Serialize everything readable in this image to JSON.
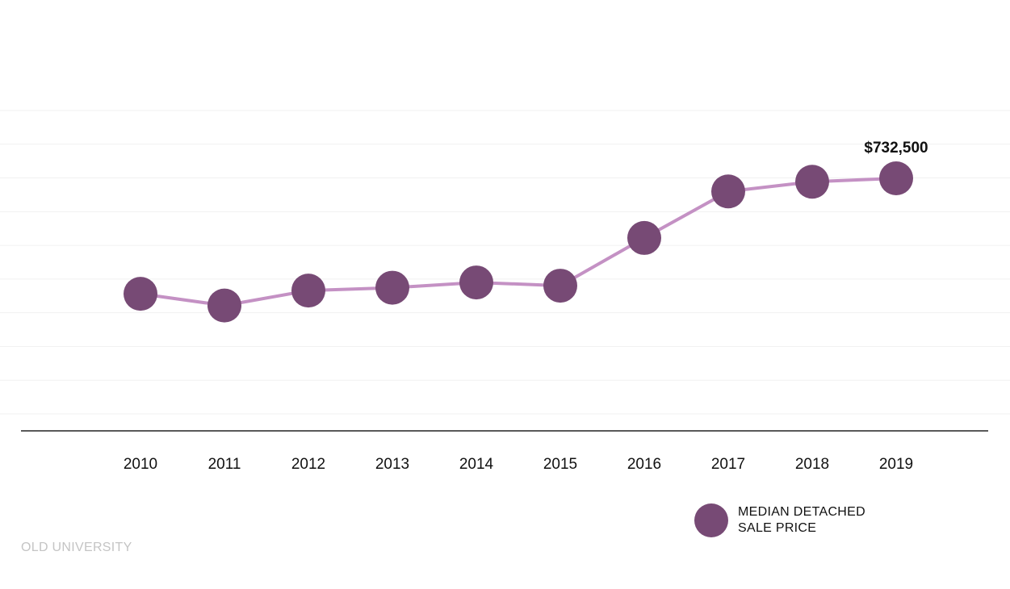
{
  "chart_data": {
    "type": "line",
    "title": "",
    "xlabel": "",
    "ylabel": "",
    "categories": [
      "2010",
      "2011",
      "2012",
      "2013",
      "2014",
      "2015",
      "2016",
      "2017",
      "2018",
      "2019"
    ],
    "series": [
      {
        "name": "MEDIAN DETACHED SALE PRICE",
        "values": [
          447000,
          418000,
          455000,
          462000,
          475000,
          467000,
          585000,
          700000,
          724000,
          732500
        ]
      }
    ],
    "ylim": [
      150000,
      900000
    ],
    "grid": true,
    "annotations": [
      {
        "category": "2019",
        "text": "$732,500"
      }
    ],
    "legend": {
      "placement": "bottom-right",
      "lines": [
        "MEDIAN DETACHED",
        "SALE PRICE"
      ]
    },
    "colors": {
      "marker": "#774a75",
      "line": "#c491c4",
      "grid": "#f1f1f1",
      "axis": "#222222"
    }
  },
  "source_label": "OLD UNIVERSITY"
}
